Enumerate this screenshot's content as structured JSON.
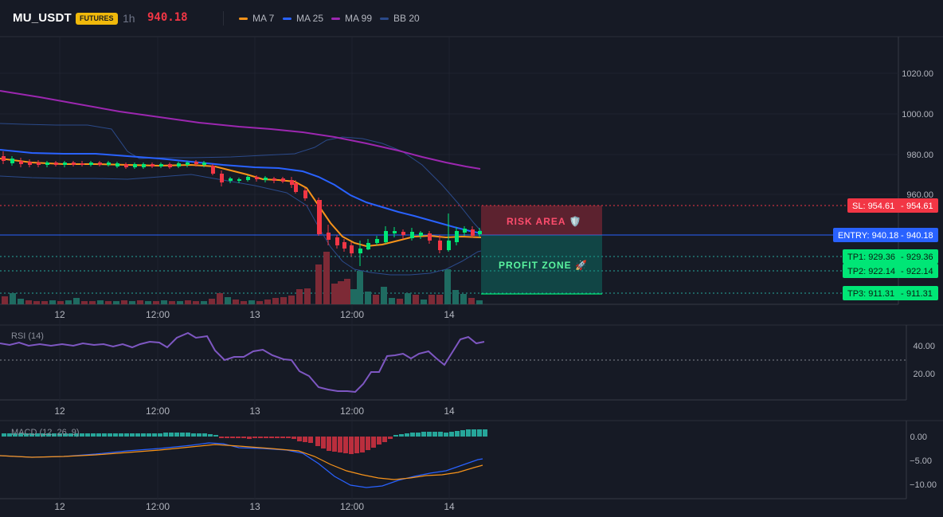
{
  "header": {
    "symbol": "MU_USDT",
    "badge": "FUTURES",
    "timeframe": "1h",
    "last_price": "940.18",
    "legend": [
      {
        "label": "MA 7",
        "color": "#f7931a"
      },
      {
        "label": "MA 25",
        "color": "#2962ff"
      },
      {
        "label": "MA 99",
        "color": "#9c27b0"
      },
      {
        "label": "BB 20",
        "color": "#2b4a8a"
      }
    ]
  },
  "price_axis": {
    "labels": [
      "1020.00",
      "1000.00",
      "980.00",
      "960.00"
    ]
  },
  "time_axis": {
    "labels": [
      "12",
      "12:00",
      "13",
      "12:00",
      "14"
    ]
  },
  "levels": {
    "sl": {
      "tag": "SL: 954.61",
      "value": "954.61",
      "color": "#f23645"
    },
    "entry": {
      "tag": "ENTRY: 940.18",
      "value": "940.18",
      "color": "#2962ff"
    },
    "tp1": {
      "tag": "TP1: 929.36",
      "value": "929.36",
      "color": "#00e676"
    },
    "tp2": {
      "tag": "TP2: 922.14",
      "value": "922.14",
      "color": "#00e676"
    },
    "tp3": {
      "tag": "TP3: 911.31",
      "value": "911.31",
      "color": "#00e676"
    }
  },
  "zones": {
    "risk": "RISK AREA 🛡️",
    "profit": "PROFIT ZONE 🚀"
  },
  "rsi": {
    "title": "RSI (14)",
    "axis": [
      "40.00",
      "20.00"
    ]
  },
  "macd": {
    "title": "MACD (12, 26, 9)",
    "axis": [
      "0.00",
      "−5.00",
      "−10.00"
    ]
  }
}
